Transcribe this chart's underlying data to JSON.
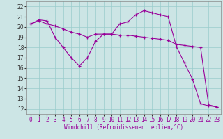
{
  "background_color": "#cce5e5",
  "grid_color": "#99cccc",
  "line_color": "#990099",
  "xlim": [
    -0.5,
    23.5
  ],
  "ylim": [
    11.5,
    22.5
  ],
  "yticks": [
    12,
    13,
    14,
    15,
    16,
    17,
    18,
    19,
    20,
    21,
    22
  ],
  "xticks": [
    0,
    1,
    2,
    3,
    4,
    5,
    6,
    7,
    8,
    9,
    10,
    11,
    12,
    13,
    14,
    15,
    16,
    17,
    18,
    19,
    20,
    21,
    22,
    23
  ],
  "xlabel": "Windchill (Refroidissement éolien,°C)",
  "line1_x": [
    0,
    1,
    2,
    3,
    4,
    5,
    6,
    7,
    8,
    9,
    10,
    11,
    12,
    13,
    14,
    15,
    16,
    17,
    18,
    19,
    20,
    21,
    22,
    23
  ],
  "line1_y": [
    20.3,
    20.7,
    20.6,
    19.0,
    18.0,
    17.0,
    16.2,
    17.0,
    18.6,
    19.3,
    19.3,
    20.3,
    20.5,
    21.2,
    21.6,
    21.4,
    21.2,
    21.0,
    18.1,
    16.5,
    14.9,
    12.5,
    12.3,
    12.2
  ],
  "line2_x": [
    0,
    1,
    2,
    3,
    4,
    5,
    6,
    7,
    8,
    9,
    10,
    11,
    12,
    13,
    14,
    15,
    16,
    17,
    18,
    19,
    20,
    21,
    22,
    23
  ],
  "line2_y": [
    20.3,
    20.6,
    20.3,
    20.1,
    19.8,
    19.5,
    19.3,
    19.0,
    19.3,
    19.3,
    19.3,
    19.2,
    19.2,
    19.1,
    19.0,
    18.9,
    18.8,
    18.7,
    18.3,
    18.2,
    18.1,
    18.0,
    12.4,
    12.2
  ],
  "xlabel_fontsize": 5.5,
  "tick_fontsize": 5.5
}
